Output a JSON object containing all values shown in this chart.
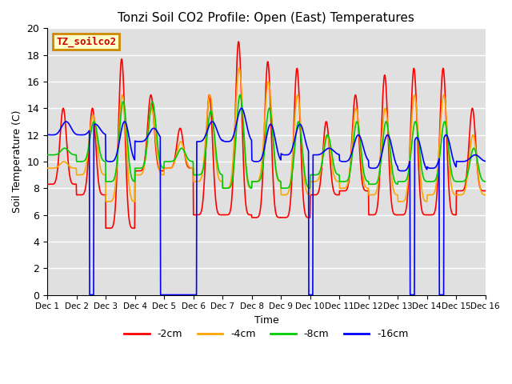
{
  "title": "Tonzi Soil CO2 Profile: Open (East) Temperatures",
  "ylabel": "Soil Temperature (C)",
  "xlabel": "Time",
  "legend_title": "TZ_soilco2",
  "ylim": [
    0,
    20
  ],
  "xlim": [
    0,
    15
  ],
  "colors": {
    "-2cm": "#ff0000",
    "-4cm": "#ffa500",
    "-8cm": "#00cc00",
    "-16cm": "#0000ff"
  },
  "legend_labels": [
    "-2cm",
    "-4cm",
    "-8cm",
    "-16cm"
  ],
  "background_color": "#e0e0e0",
  "n_days": 15,
  "points_per_day": 96,
  "xtick_labels": [
    "Dec 1",
    "Dec 2",
    "Dec 3",
    "Dec 4",
    "Dec 5",
    "Dec 6",
    "Dec 7",
    "Dec 8",
    "Dec 9",
    "Dec 10",
    "Dec 11",
    "Dec 12",
    "Dec 13",
    "Dec 14",
    "Dec 15",
    "Dec 16"
  ]
}
